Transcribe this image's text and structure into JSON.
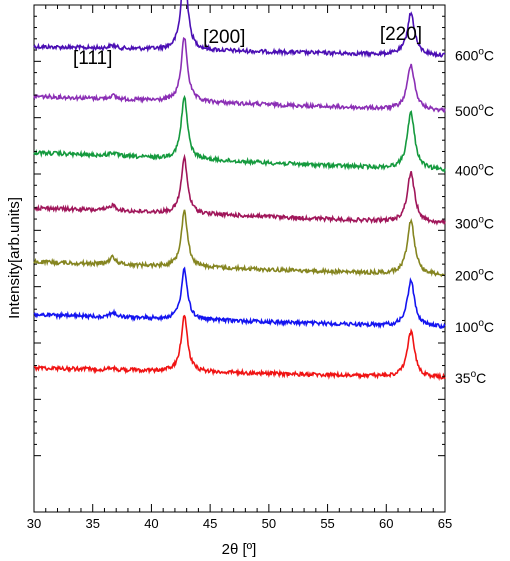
{
  "chart_data": {
    "type": "line",
    "title": "",
    "xlabel": "2θ [º]",
    "ylabel": "Intensity[arb.units]",
    "xlim": [
      30,
      65
    ],
    "x_ticks": [
      30,
      35,
      40,
      45,
      50,
      55,
      60,
      65
    ],
    "y_ticks_labeled": false,
    "grid": false,
    "legend": "right-side labels",
    "peak_labels": [
      {
        "text": "[111]",
        "x": 36.7
      },
      {
        "text": "[200]",
        "x": 42.8
      },
      {
        "text": "[220]",
        "x": 62.1
      }
    ],
    "peaks": [
      {
        "center": 36.7,
        "width": 0.35
      },
      {
        "center": 42.8,
        "width": 0.32
      },
      {
        "center": 62.1,
        "width": 0.38
      }
    ],
    "series": [
      {
        "name": "600ºC",
        "value": "600",
        "unit": "ºC",
        "color": "#4B0FB4",
        "baseline_start": 0.74,
        "baseline_end": 0.9,
        "peak_heights": [
          0.05,
          1.48,
          0.74
        ]
      },
      {
        "name": "500ºC",
        "value": "500",
        "unit": "ºC",
        "color": "#8B2FB5",
        "baseline_start": 1.62,
        "baseline_end": 1.88,
        "peak_heights": [
          0.06,
          1.14,
          0.8
        ]
      },
      {
        "name": "400ºC",
        "value": "400",
        "unit": "ºC",
        "color": "#159A3E",
        "baseline_start": 2.62,
        "baseline_end": 2.94,
        "peak_heights": [
          0.06,
          1.1,
          1.0
        ]
      },
      {
        "name": "300ºC",
        "value": "300",
        "unit": "ºC",
        "color": "#A0165A",
        "baseline_start": 3.6,
        "baseline_end": 3.88,
        "peak_heights": [
          0.1,
          0.98,
          0.88
        ]
      },
      {
        "name": "200ºC",
        "value": "200",
        "unit": "ºC",
        "color": "#858520",
        "baseline_start": 4.56,
        "baseline_end": 4.8,
        "peak_heights": [
          0.13,
          1.0,
          0.96
        ]
      },
      {
        "name": "100ºC",
        "value": "100",
        "unit": "ºC",
        "color": "#1414F0",
        "baseline_start": 5.5,
        "baseline_end": 5.72,
        "peak_heights": [
          0.08,
          0.88,
          0.8
        ]
      },
      {
        "name": "35ºC",
        "value": "35",
        "unit": "ºC",
        "color": "#F01414",
        "baseline_start": 6.44,
        "baseline_end": 6.62,
        "peak_heights": [
          0.02,
          1.0,
          0.8
        ]
      }
    ]
  }
}
